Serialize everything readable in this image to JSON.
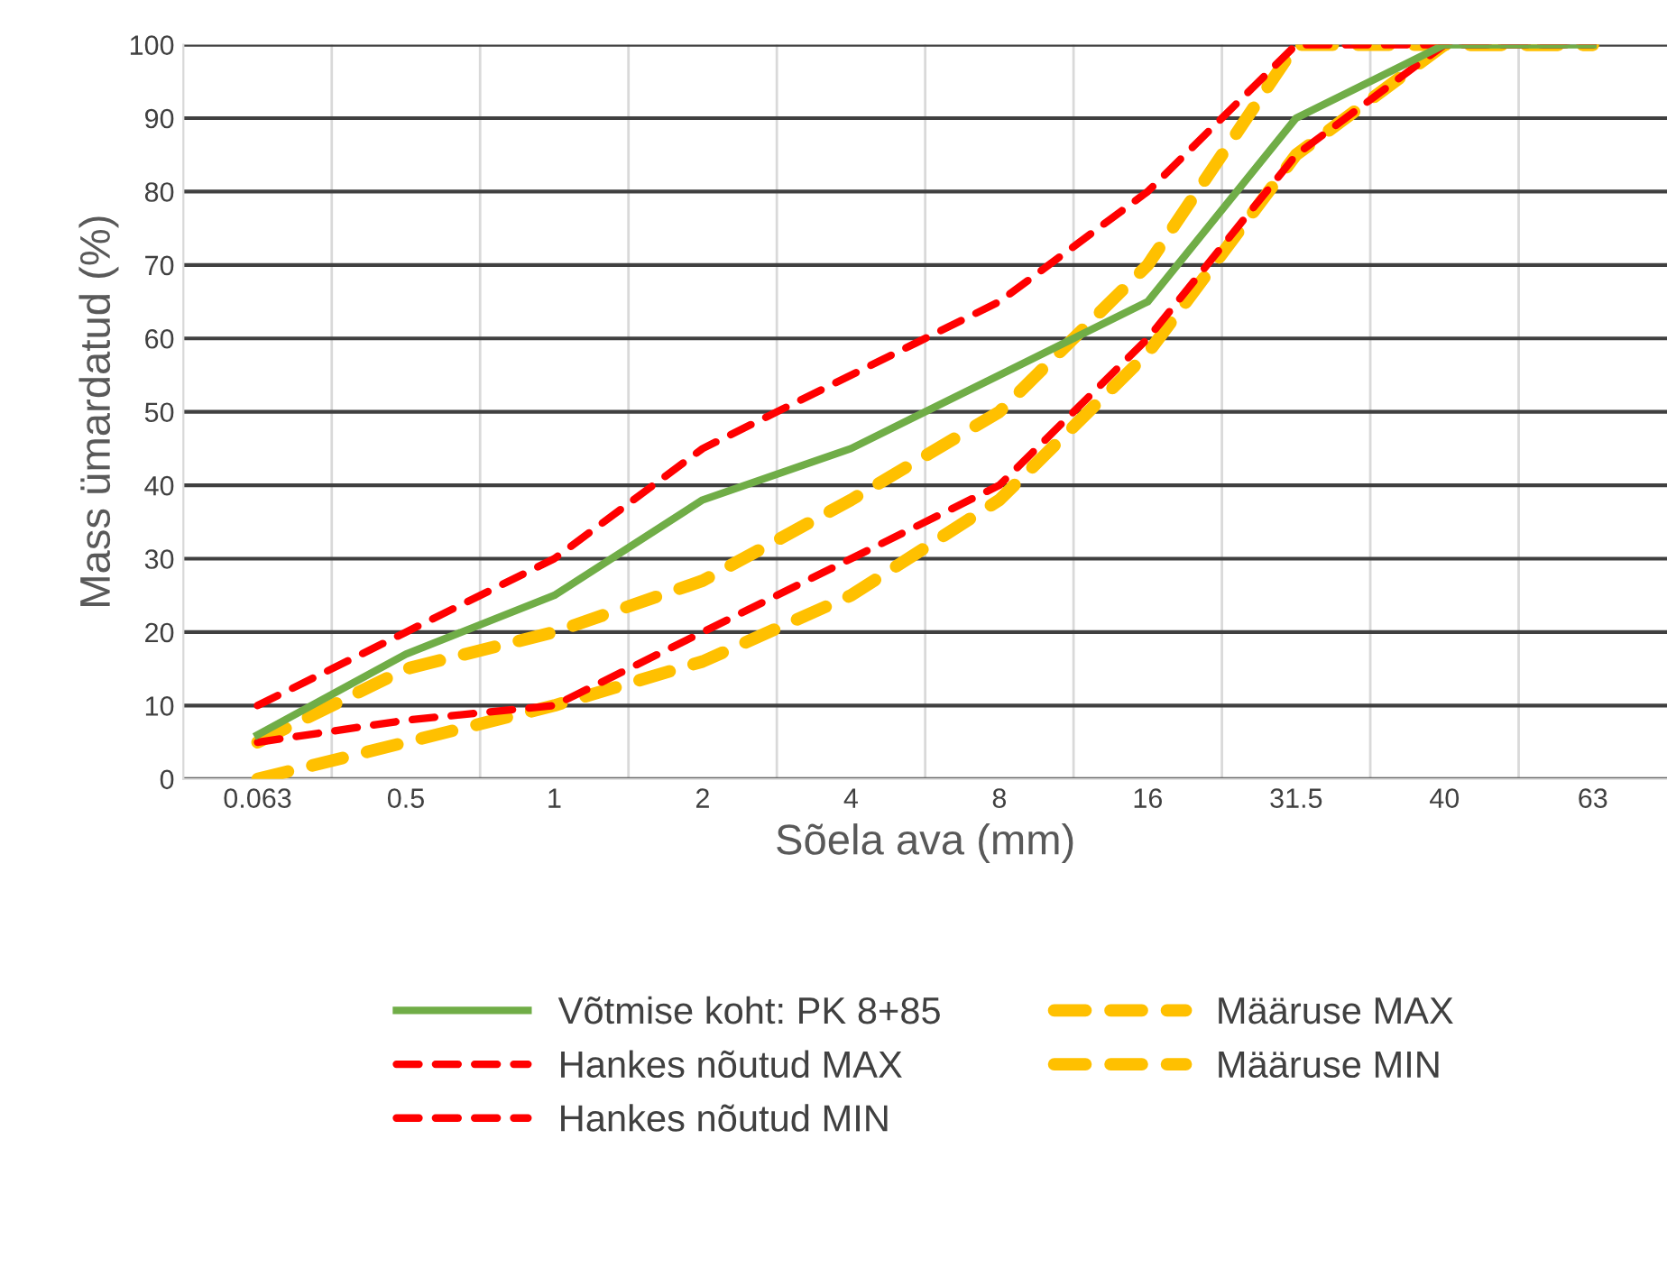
{
  "chart_data": {
    "type": "line",
    "xlabel": "Sõela ava (mm)",
    "ylabel": "Mass ümardatud (%)",
    "categories": [
      "0.063",
      "0.5",
      "1",
      "2",
      "4",
      "8",
      "16",
      "31.5",
      "40",
      "63"
    ],
    "ylim": [
      0,
      100
    ],
    "yticks": [
      0,
      10,
      20,
      30,
      40,
      50,
      60,
      70,
      80,
      90,
      100
    ],
    "grid": true,
    "legend": "bottom",
    "series": [
      {
        "name": "Võtmise koht: PK 8+85",
        "color": "#70ad47",
        "line_style": "solid",
        "values": [
          6,
          17,
          25,
          38,
          45,
          55,
          65,
          90,
          100,
          100
        ]
      },
      {
        "name": "Hankes nõutud MAX",
        "color": "#ff0000",
        "line_style": "dashed",
        "values": [
          10,
          20,
          30,
          45,
          55,
          65,
          80,
          100,
          100,
          100
        ]
      },
      {
        "name": "Hankes nõutud MIN",
        "color": "#ff0000",
        "line_style": "dashed",
        "values": [
          5,
          8,
          10,
          20,
          30,
          40,
          60,
          85,
          100,
          100
        ]
      },
      {
        "name": "Määruse MAX",
        "color": "#ffc000",
        "line_style": "dashed",
        "values": [
          5,
          15,
          20,
          27,
          38,
          50,
          70,
          100,
          100,
          100
        ]
      },
      {
        "name": "Määruse MIN",
        "color": "#ffc000",
        "line_style": "dashed",
        "values": [
          0,
          5,
          10,
          16,
          25,
          38,
          58,
          85,
          100,
          100
        ]
      }
    ]
  }
}
